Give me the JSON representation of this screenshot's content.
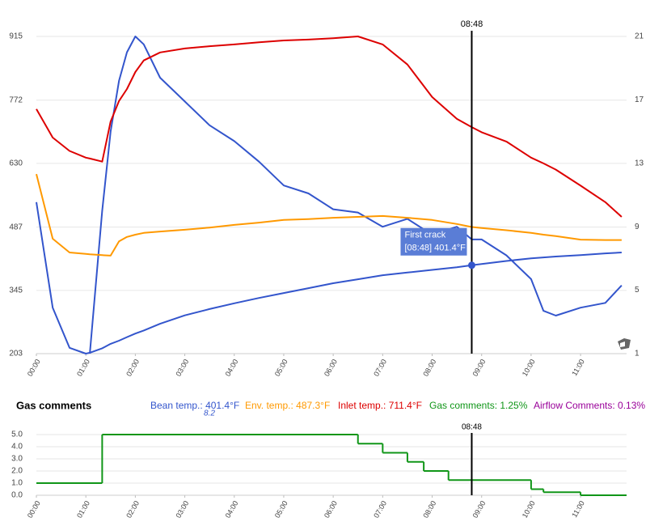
{
  "chart_data": [
    {
      "type": "line",
      "x": [
        0,
        0.33,
        0.67,
        1,
        1.08,
        1.33,
        1.5,
        1.67,
        1.83,
        2,
        2.17,
        2.5,
        3,
        3.5,
        4,
        4.5,
        5,
        5.5,
        6,
        6.5,
        7,
        7.5,
        8,
        8.5,
        8.8,
        9,
        9.5,
        10,
        10.25,
        10.5,
        11,
        11.5,
        11.83
      ],
      "series": [
        {
          "name": "Bean temp.:",
          "reading": "401.4°F",
          "color": "#3355cc",
          "values": [
            543,
            306,
            216,
            203,
            205,
            215,
            225,
            232,
            240,
            248,
            255,
            270,
            289,
            303,
            316,
            328,
            339,
            350,
            361,
            370,
            379,
            385,
            391,
            397,
            401.4,
            404,
            411,
            417,
            419,
            421,
            424,
            428,
            430
          ]
        },
        {
          "reading": "8.2",
          "color": "#3355cc",
          "axis": "y2",
          "values": [
            null,
            null,
            null,
            null,
            1,
            10,
            15,
            18.2,
            20,
            21,
            20.5,
            18.4,
            16.9,
            15.4,
            14.4,
            13.1,
            11.6,
            11.1,
            10.1,
            9.9,
            9.0,
            9.5,
            8.5,
            9.0,
            8.2,
            8.2,
            7.2,
            5.7,
            3.7,
            3.4,
            3.9,
            4.2,
            5.3
          ]
        },
        {
          "name": "Env. temp.:",
          "reading": "487.3°F",
          "color": "#ff9900",
          "values": [
            606,
            461,
            430,
            427,
            426,
            424,
            423,
            455,
            465,
            470,
            474,
            477,
            481,
            486,
            492,
            497,
            503,
            505,
            508,
            510,
            512,
            508,
            503,
            494,
            487.3,
            485,
            480,
            474,
            470,
            467,
            459,
            458,
            458
          ]
        },
        {
          "name": "Inlet temp.:",
          "reading": "711.4°F",
          "color": "#dd0000",
          "values": [
            752,
            688,
            658,
            643,
            641,
            634,
            724,
            770,
            797,
            835,
            861,
            879,
            888,
            893,
            897,
            902,
            906,
            908,
            911,
            915,
            897,
            852,
            779,
            730,
            711.4,
            700,
            679,
            643,
            630,
            616,
            580,
            543,
            510
          ]
        }
      ],
      "xlim": [
        0,
        11.93
      ],
      "xticks": [
        {
          "value": 0,
          "label": "00:00"
        },
        {
          "value": 1,
          "label": "01:00"
        },
        {
          "value": 2,
          "label": "02:00"
        },
        {
          "value": 3,
          "label": "03:00"
        },
        {
          "value": 4,
          "label": "04:00"
        },
        {
          "value": 5,
          "label": "05:00"
        },
        {
          "value": 6,
          "label": "06:00"
        },
        {
          "value": 7,
          "label": "07:00"
        },
        {
          "value": 8,
          "label": "08:00"
        },
        {
          "value": 9,
          "label": "09:00"
        },
        {
          "value": 10,
          "label": "10:00"
        },
        {
          "value": 11,
          "label": "11:00"
        }
      ],
      "ylim": [
        203,
        915
      ],
      "yticks": [
        203,
        345,
        487,
        630,
        772,
        915
      ],
      "y2lim": [
        1,
        21
      ],
      "y2ticks": [
        1,
        5,
        9,
        13,
        17,
        21
      ],
      "grid": true,
      "annotation": {
        "x": 8.8,
        "label": "08:48",
        "text": "First crack",
        "detail": "[08:48] 401.4°F",
        "value": 401.4
      }
    },
    {
      "type": "step",
      "title": "Gas comments",
      "x": [
        0,
        1.33,
        6.5,
        7,
        7.5,
        7.83,
        8.33,
        10,
        10.25,
        11
      ],
      "series": [
        {
          "name": "Gas comments:",
          "reading": "1.25%",
          "color": "#109618",
          "values": [
            1,
            5,
            4.25,
            3.5,
            2.75,
            2,
            1.25,
            0.5,
            0.25,
            0
          ]
        },
        {
          "name": "Airflow Comments:",
          "reading": "0.13%",
          "color": "#990099"
        }
      ],
      "xlim": [
        0,
        11.93
      ],
      "xticks": [
        {
          "value": 0,
          "label": "00:00"
        },
        {
          "value": 1,
          "label": "01:00"
        },
        {
          "value": 2,
          "label": "02:00"
        },
        {
          "value": 3,
          "label": "03:00"
        },
        {
          "value": 4,
          "label": "04:00"
        },
        {
          "value": 5,
          "label": "05:00"
        },
        {
          "value": 6,
          "label": "06:00"
        },
        {
          "value": 7,
          "label": "07:00"
        },
        {
          "value": 8,
          "label": "08:00"
        },
        {
          "value": 9,
          "label": "09:00"
        },
        {
          "value": 10,
          "label": "10:00"
        },
        {
          "value": 11,
          "label": "11:00"
        }
      ],
      "ylim": [
        0,
        5
      ],
      "yticks": [
        {
          "value": 0,
          "label": "0.0"
        },
        {
          "value": 1,
          "label": "1.0"
        },
        {
          "value": 2,
          "label": "2.0"
        },
        {
          "value": 3,
          "label": "3.0"
        },
        {
          "value": 4,
          "label": "4.0"
        },
        {
          "value": 5,
          "label": "5.0"
        }
      ],
      "grid": true,
      "annotation": {
        "x": 8.8,
        "label": "08:48"
      }
    }
  ]
}
